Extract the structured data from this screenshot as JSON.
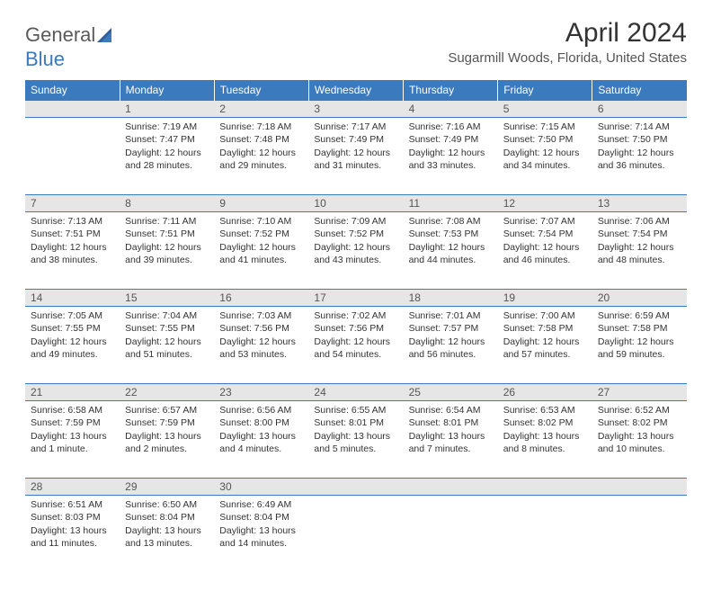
{
  "brand": {
    "name_left": "General",
    "name_right": "Blue"
  },
  "title": "April 2024",
  "location": "Sugarmill Woods, Florida, United States",
  "colors": {
    "header_bg": "#3a7abd",
    "header_text": "#ffffff",
    "daynum_bg": "#e6e6e6",
    "border": "#3a7abd",
    "text": "#333333",
    "brand_gray": "#5a5a5a",
    "brand_blue": "#3a7abd"
  },
  "day_headers": [
    "Sunday",
    "Monday",
    "Tuesday",
    "Wednesday",
    "Thursday",
    "Friday",
    "Saturday"
  ],
  "weeks": [
    [
      {
        "num": "",
        "lines": []
      },
      {
        "num": "1",
        "lines": [
          "Sunrise: 7:19 AM",
          "Sunset: 7:47 PM",
          "Daylight: 12 hours and 28 minutes."
        ]
      },
      {
        "num": "2",
        "lines": [
          "Sunrise: 7:18 AM",
          "Sunset: 7:48 PM",
          "Daylight: 12 hours and 29 minutes."
        ]
      },
      {
        "num": "3",
        "lines": [
          "Sunrise: 7:17 AM",
          "Sunset: 7:49 PM",
          "Daylight: 12 hours and 31 minutes."
        ]
      },
      {
        "num": "4",
        "lines": [
          "Sunrise: 7:16 AM",
          "Sunset: 7:49 PM",
          "Daylight: 12 hours and 33 minutes."
        ]
      },
      {
        "num": "5",
        "lines": [
          "Sunrise: 7:15 AM",
          "Sunset: 7:50 PM",
          "Daylight: 12 hours and 34 minutes."
        ]
      },
      {
        "num": "6",
        "lines": [
          "Sunrise: 7:14 AM",
          "Sunset: 7:50 PM",
          "Daylight: 12 hours and 36 minutes."
        ]
      }
    ],
    [
      {
        "num": "7",
        "lines": [
          "Sunrise: 7:13 AM",
          "Sunset: 7:51 PM",
          "Daylight: 12 hours and 38 minutes."
        ]
      },
      {
        "num": "8",
        "lines": [
          "Sunrise: 7:11 AM",
          "Sunset: 7:51 PM",
          "Daylight: 12 hours and 39 minutes."
        ]
      },
      {
        "num": "9",
        "lines": [
          "Sunrise: 7:10 AM",
          "Sunset: 7:52 PM",
          "Daylight: 12 hours and 41 minutes."
        ]
      },
      {
        "num": "10",
        "lines": [
          "Sunrise: 7:09 AM",
          "Sunset: 7:52 PM",
          "Daylight: 12 hours and 43 minutes."
        ]
      },
      {
        "num": "11",
        "lines": [
          "Sunrise: 7:08 AM",
          "Sunset: 7:53 PM",
          "Daylight: 12 hours and 44 minutes."
        ]
      },
      {
        "num": "12",
        "lines": [
          "Sunrise: 7:07 AM",
          "Sunset: 7:54 PM",
          "Daylight: 12 hours and 46 minutes."
        ]
      },
      {
        "num": "13",
        "lines": [
          "Sunrise: 7:06 AM",
          "Sunset: 7:54 PM",
          "Daylight: 12 hours and 48 minutes."
        ]
      }
    ],
    [
      {
        "num": "14",
        "lines": [
          "Sunrise: 7:05 AM",
          "Sunset: 7:55 PM",
          "Daylight: 12 hours and 49 minutes."
        ]
      },
      {
        "num": "15",
        "lines": [
          "Sunrise: 7:04 AM",
          "Sunset: 7:55 PM",
          "Daylight: 12 hours and 51 minutes."
        ]
      },
      {
        "num": "16",
        "lines": [
          "Sunrise: 7:03 AM",
          "Sunset: 7:56 PM",
          "Daylight: 12 hours and 53 minutes."
        ]
      },
      {
        "num": "17",
        "lines": [
          "Sunrise: 7:02 AM",
          "Sunset: 7:56 PM",
          "Daylight: 12 hours and 54 minutes."
        ]
      },
      {
        "num": "18",
        "lines": [
          "Sunrise: 7:01 AM",
          "Sunset: 7:57 PM",
          "Daylight: 12 hours and 56 minutes."
        ]
      },
      {
        "num": "19",
        "lines": [
          "Sunrise: 7:00 AM",
          "Sunset: 7:58 PM",
          "Daylight: 12 hours and 57 minutes."
        ]
      },
      {
        "num": "20",
        "lines": [
          "Sunrise: 6:59 AM",
          "Sunset: 7:58 PM",
          "Daylight: 12 hours and 59 minutes."
        ]
      }
    ],
    [
      {
        "num": "21",
        "lines": [
          "Sunrise: 6:58 AM",
          "Sunset: 7:59 PM",
          "Daylight: 13 hours and 1 minute."
        ]
      },
      {
        "num": "22",
        "lines": [
          "Sunrise: 6:57 AM",
          "Sunset: 7:59 PM",
          "Daylight: 13 hours and 2 minutes."
        ]
      },
      {
        "num": "23",
        "lines": [
          "Sunrise: 6:56 AM",
          "Sunset: 8:00 PM",
          "Daylight: 13 hours and 4 minutes."
        ]
      },
      {
        "num": "24",
        "lines": [
          "Sunrise: 6:55 AM",
          "Sunset: 8:01 PM",
          "Daylight: 13 hours and 5 minutes."
        ]
      },
      {
        "num": "25",
        "lines": [
          "Sunrise: 6:54 AM",
          "Sunset: 8:01 PM",
          "Daylight: 13 hours and 7 minutes."
        ]
      },
      {
        "num": "26",
        "lines": [
          "Sunrise: 6:53 AM",
          "Sunset: 8:02 PM",
          "Daylight: 13 hours and 8 minutes."
        ]
      },
      {
        "num": "27",
        "lines": [
          "Sunrise: 6:52 AM",
          "Sunset: 8:02 PM",
          "Daylight: 13 hours and 10 minutes."
        ]
      }
    ],
    [
      {
        "num": "28",
        "lines": [
          "Sunrise: 6:51 AM",
          "Sunset: 8:03 PM",
          "Daylight: 13 hours and 11 minutes."
        ]
      },
      {
        "num": "29",
        "lines": [
          "Sunrise: 6:50 AM",
          "Sunset: 8:04 PM",
          "Daylight: 13 hours and 13 minutes."
        ]
      },
      {
        "num": "30",
        "lines": [
          "Sunrise: 6:49 AM",
          "Sunset: 8:04 PM",
          "Daylight: 13 hours and 14 minutes."
        ]
      },
      {
        "num": "",
        "lines": []
      },
      {
        "num": "",
        "lines": []
      },
      {
        "num": "",
        "lines": []
      },
      {
        "num": "",
        "lines": []
      }
    ]
  ]
}
